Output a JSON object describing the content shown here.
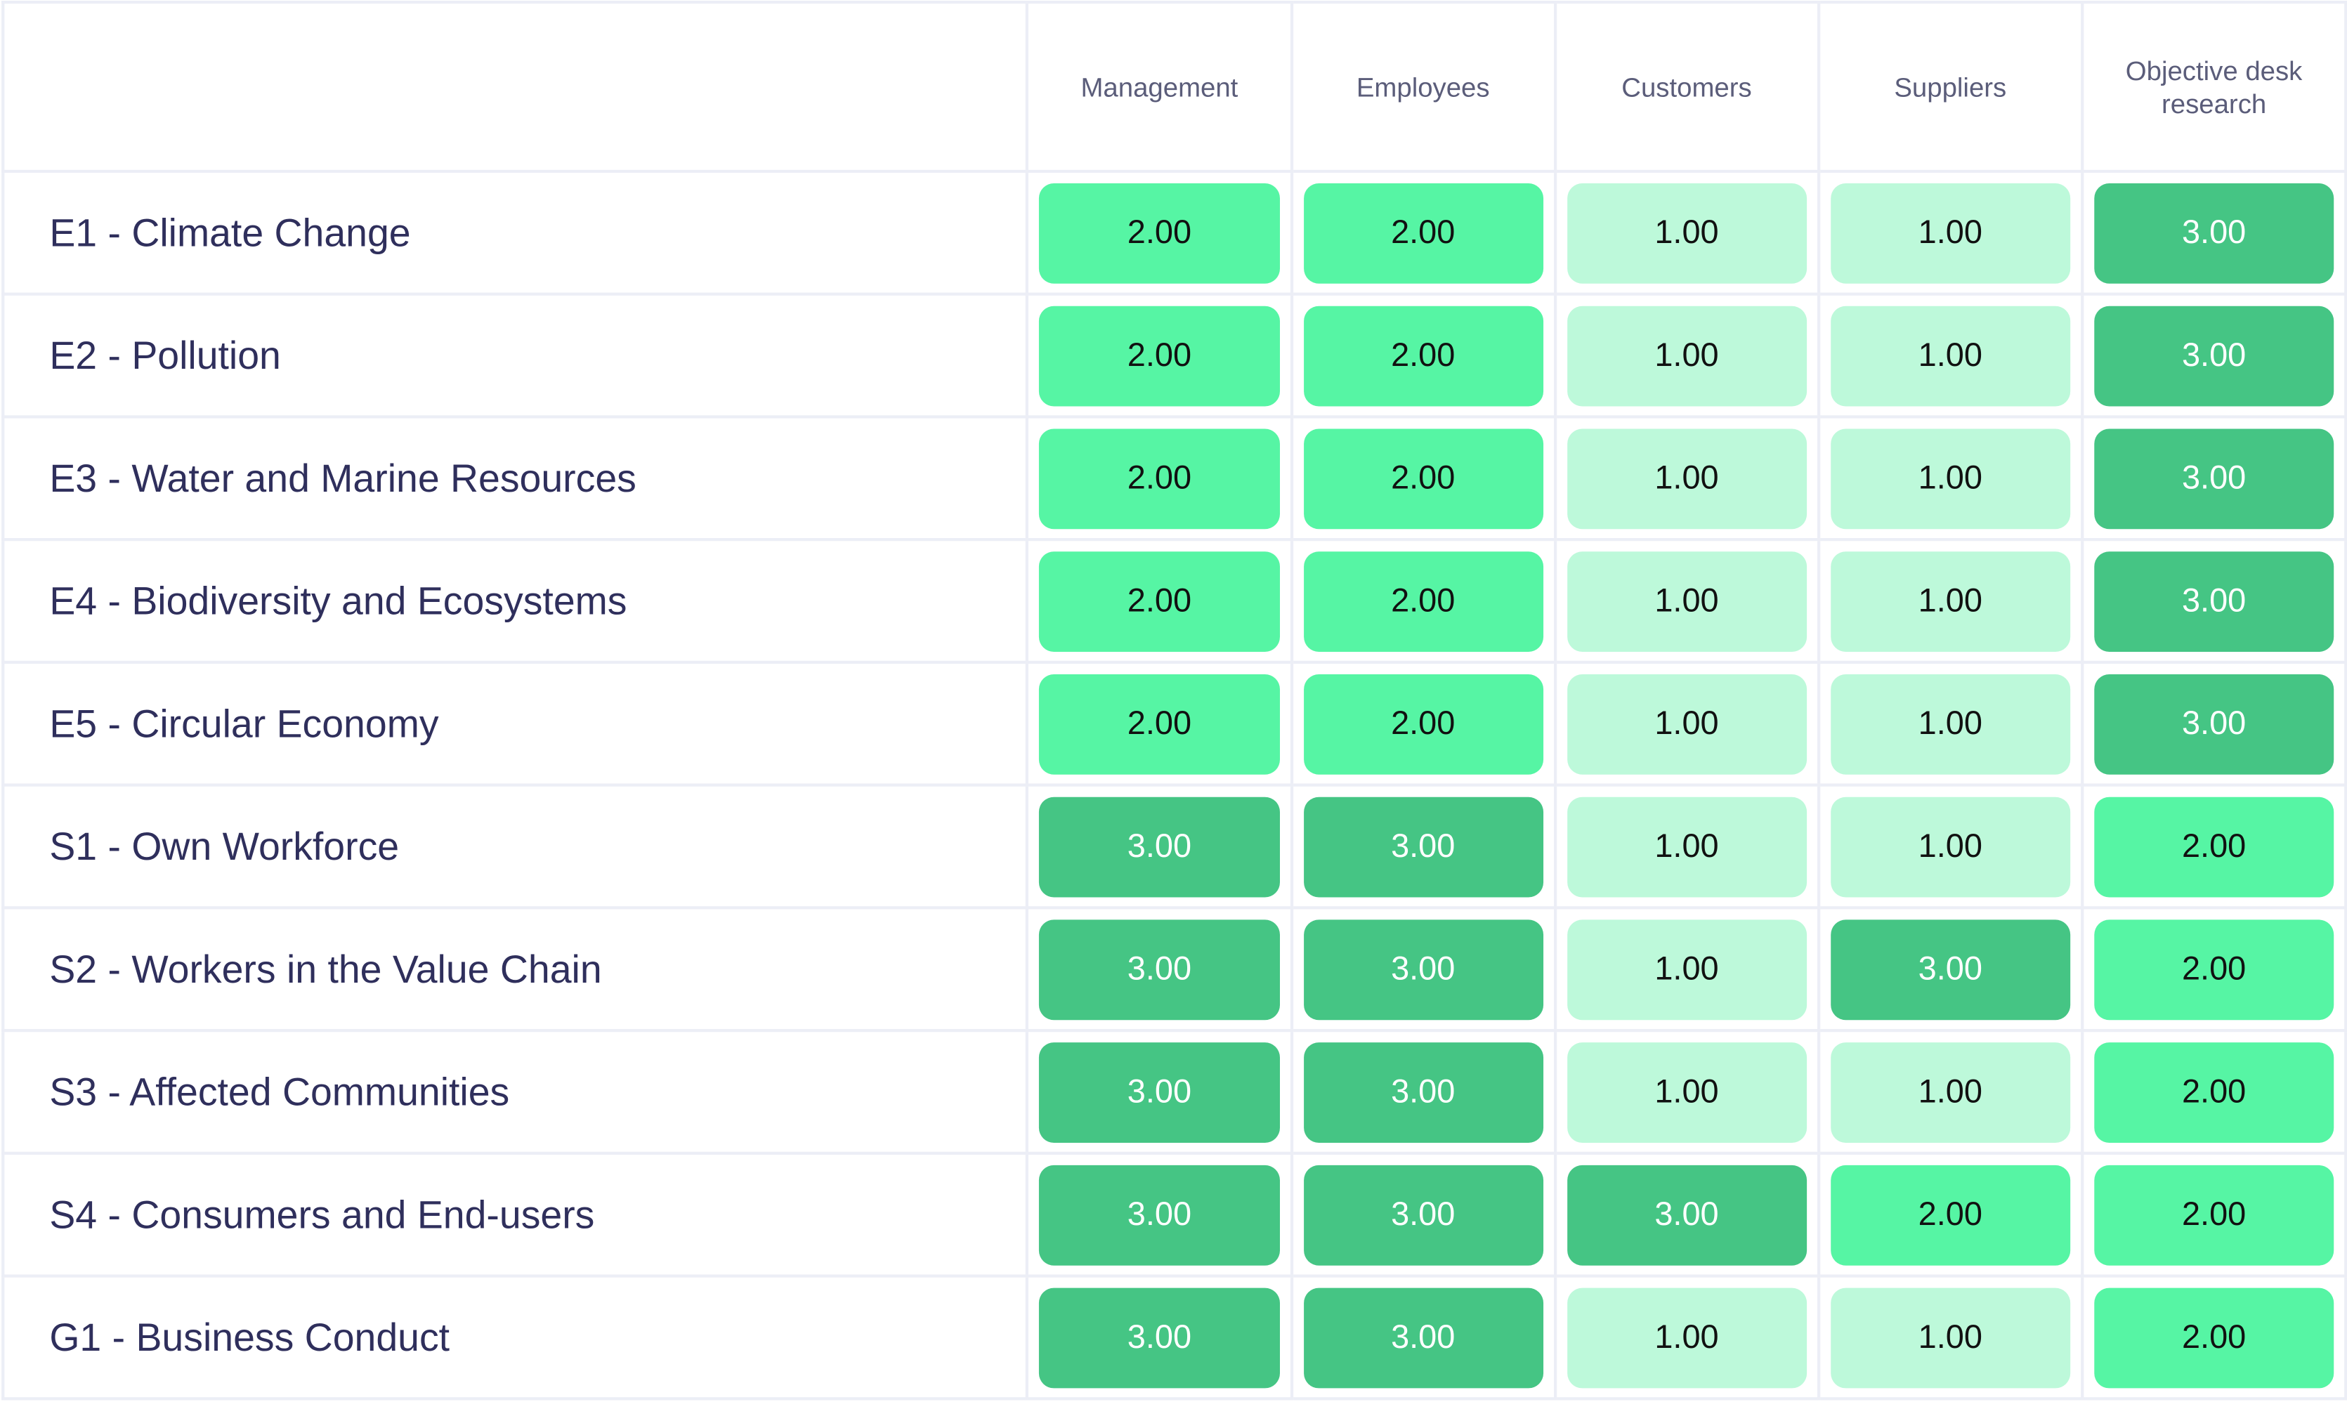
{
  "columns": [
    "Management",
    "Employees",
    "Customers",
    "Suppliers",
    "Objective desk research"
  ],
  "rows": [
    {
      "label": "E1 - Climate Change",
      "values": [
        "2.00",
        "2.00",
        "1.00",
        "1.00",
        "3.00"
      ]
    },
    {
      "label": "E2 - Pollution",
      "values": [
        "2.00",
        "2.00",
        "1.00",
        "1.00",
        "3.00"
      ]
    },
    {
      "label": "E3 - Water and Marine Resources",
      "values": [
        "2.00",
        "2.00",
        "1.00",
        "1.00",
        "3.00"
      ]
    },
    {
      "label": "E4 - Biodiversity and Ecosystems",
      "values": [
        "2.00",
        "2.00",
        "1.00",
        "1.00",
        "3.00"
      ]
    },
    {
      "label": "E5 - Circular Economy",
      "values": [
        "2.00",
        "2.00",
        "1.00",
        "1.00",
        "3.00"
      ]
    },
    {
      "label": "S1 - Own Workforce",
      "values": [
        "3.00",
        "3.00",
        "1.00",
        "1.00",
        "2.00"
      ]
    },
    {
      "label": "S2 - Workers in the Value Chain",
      "values": [
        "3.00",
        "3.00",
        "1.00",
        "3.00",
        "2.00"
      ]
    },
    {
      "label": "S3 - Affected Communities",
      "values": [
        "3.00",
        "3.00",
        "1.00",
        "1.00",
        "2.00"
      ]
    },
    {
      "label": "S4 - Consumers and End-users",
      "values": [
        "3.00",
        "3.00",
        "3.00",
        "2.00",
        "2.00"
      ]
    },
    {
      "label": "G1 - Business Conduct",
      "values": [
        "3.00",
        "3.00",
        "1.00",
        "1.00",
        "2.00"
      ]
    }
  ],
  "colors": {
    "level_1": "#bdf9da",
    "level_2": "#56f5a4",
    "level_3": "#45c584",
    "label_text": "#2f2f5c",
    "header_text": "#5b5d7a",
    "grid_border": "#eceef6"
  }
}
